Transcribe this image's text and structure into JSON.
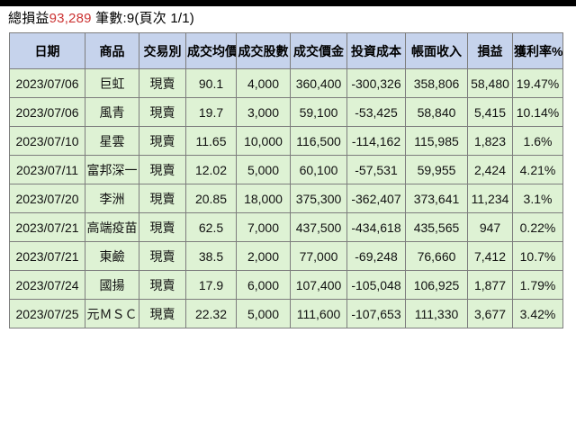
{
  "summary": {
    "total_label": "總損益",
    "total_value": "93,289",
    "count_text": " 筆數:9(頁次 1/1)"
  },
  "table": {
    "columns": [
      "日期",
      "商品",
      "交易別",
      "成交均價",
      "成交股數",
      "成交價金",
      "投資成本",
      "帳面收入",
      "損益",
      "獲利率%"
    ],
    "rows": [
      {
        "date": "2023/07/06",
        "product": "巨虹",
        "trade": "現賣",
        "avg_price": "90.1",
        "shares": "4,000",
        "amount": "360,400",
        "cost": "-300,326",
        "income": "358,806",
        "profit": "58,480",
        "rate": "19.47%"
      },
      {
        "date": "2023/07/06",
        "product": "風青",
        "trade": "現賣",
        "avg_price": "19.7",
        "shares": "3,000",
        "amount": "59,100",
        "cost": "-53,425",
        "income": "58,840",
        "profit": "5,415",
        "rate": "10.14%"
      },
      {
        "date": "2023/07/10",
        "product": "星雲",
        "trade": "現賣",
        "avg_price": "11.65",
        "shares": "10,000",
        "amount": "116,500",
        "cost": "-114,162",
        "income": "115,985",
        "profit": "1,823",
        "rate": "1.6%"
      },
      {
        "date": "2023/07/11",
        "product": "富邦深一",
        "trade": "現賣",
        "avg_price": "12.02",
        "shares": "5,000",
        "amount": "60,100",
        "cost": "-57,531",
        "income": "59,955",
        "profit": "2,424",
        "rate": "4.21%"
      },
      {
        "date": "2023/07/20",
        "product": "李洲",
        "trade": "現賣",
        "avg_price": "20.85",
        "shares": "18,000",
        "amount": "375,300",
        "cost": "-362,407",
        "income": "373,641",
        "profit": "11,234",
        "rate": "3.1%"
      },
      {
        "date": "2023/07/21",
        "product": "高端疫苗",
        "trade": "現賣",
        "avg_price": "62.5",
        "shares": "7,000",
        "amount": "437,500",
        "cost": "-434,618",
        "income": "435,565",
        "profit": "947",
        "rate": "0.22%"
      },
      {
        "date": "2023/07/21",
        "product": "東鹼",
        "trade": "現賣",
        "avg_price": "38.5",
        "shares": "2,000",
        "amount": "77,000",
        "cost": "-69,248",
        "income": "76,660",
        "profit": "7,412",
        "rate": "10.7%"
      },
      {
        "date": "2023/07/24",
        "product": "國揚",
        "trade": "現賣",
        "avg_price": "17.9",
        "shares": "6,000",
        "amount": "107,400",
        "cost": "-105,048",
        "income": "106,925",
        "profit": "1,877",
        "rate": "1.79%"
      },
      {
        "date": "2023/07/25",
        "product": "元ＭＳＣ",
        "trade": "現賣",
        "avg_price": "22.32",
        "shares": "5,000",
        "amount": "111,600",
        "cost": "-107,653",
        "income": "111,330",
        "profit": "3,677",
        "rate": "3.42%"
      }
    ]
  },
  "colors": {
    "top_bar": "#000000",
    "header_bg": "#c6d3ec",
    "row_bg": "#def2d4",
    "border": "#7d7d7d",
    "product_blue": "#2929cc",
    "trade_green": "#2aa050",
    "loss_gain_red": "#cc3333"
  }
}
